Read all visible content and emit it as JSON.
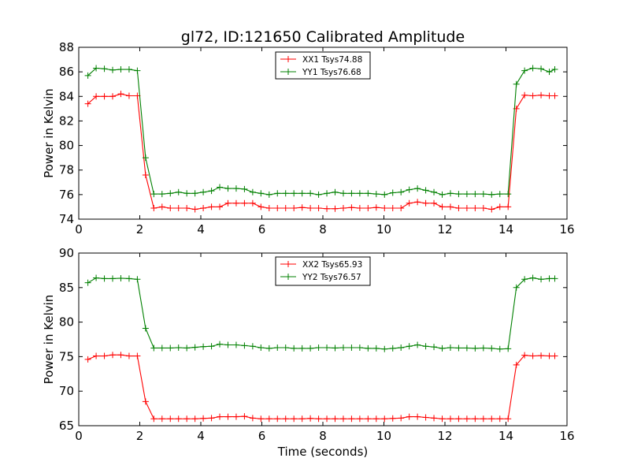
{
  "title": "gl72, ID:121650 Calibrated Amplitude",
  "chart_data": [
    {
      "type": "line",
      "ylabel": "Power in Kelvin",
      "xlabel": "",
      "xlim": [
        0,
        16
      ],
      "ylim": [
        74,
        88
      ],
      "xticks": [
        0,
        2,
        4,
        6,
        8,
        10,
        12,
        14,
        16
      ],
      "yticks": [
        74,
        76,
        78,
        80,
        82,
        84,
        86,
        88
      ],
      "legend_position": "top-center",
      "grid": false,
      "marker": "+",
      "x": [
        0.3,
        0.57,
        0.84,
        1.11,
        1.38,
        1.65,
        1.92,
        2.19,
        2.46,
        2.73,
        3.0,
        3.27,
        3.54,
        3.81,
        4.08,
        4.35,
        4.62,
        4.89,
        5.16,
        5.43,
        5.7,
        5.97,
        6.24,
        6.51,
        6.78,
        7.05,
        7.32,
        7.59,
        7.86,
        8.13,
        8.4,
        8.67,
        8.94,
        9.21,
        9.48,
        9.75,
        10.02,
        10.29,
        10.56,
        10.83,
        11.1,
        11.37,
        11.64,
        11.91,
        12.18,
        12.45,
        12.72,
        12.99,
        13.26,
        13.53,
        13.8,
        14.07,
        14.34,
        14.61,
        14.88,
        15.15,
        15.42,
        15.6
      ],
      "series": [
        {
          "name": "XX1 Tsys74.88",
          "color": "#ff0000",
          "values": [
            83.4,
            84.0,
            84.0,
            84.0,
            84.2,
            84.05,
            84.05,
            77.6,
            74.9,
            75.0,
            74.9,
            74.9,
            74.9,
            74.8,
            74.9,
            75.0,
            75.0,
            75.3,
            75.3,
            75.3,
            75.3,
            75.0,
            74.9,
            74.9,
            74.9,
            74.9,
            74.95,
            74.9,
            74.9,
            74.85,
            74.85,
            74.9,
            74.95,
            74.9,
            74.9,
            74.95,
            74.9,
            74.9,
            74.9,
            75.3,
            75.4,
            75.3,
            75.3,
            75.0,
            75.0,
            74.9,
            74.9,
            74.9,
            74.9,
            74.8,
            75.0,
            75.0,
            83.0,
            84.1,
            84.05,
            84.1,
            84.05,
            84.05
          ]
        },
        {
          "name": "YY1 Tsys76.68",
          "color": "#008000",
          "values": [
            85.7,
            86.3,
            86.25,
            86.15,
            86.2,
            86.2,
            86.1,
            79.0,
            76.05,
            76.05,
            76.1,
            76.2,
            76.1,
            76.1,
            76.2,
            76.3,
            76.6,
            76.5,
            76.5,
            76.45,
            76.2,
            76.1,
            76.0,
            76.1,
            76.1,
            76.1,
            76.1,
            76.1,
            76.0,
            76.1,
            76.2,
            76.1,
            76.1,
            76.1,
            76.1,
            76.05,
            76.0,
            76.15,
            76.2,
            76.4,
            76.5,
            76.35,
            76.2,
            76.0,
            76.1,
            76.05,
            76.05,
            76.05,
            76.05,
            76.0,
            76.05,
            76.05,
            85.0,
            86.1,
            86.3,
            86.25,
            86.0,
            86.2
          ]
        }
      ]
    },
    {
      "type": "line",
      "ylabel": "Power in Kelvin",
      "xlabel": "Time (seconds)",
      "xlim": [
        0,
        16
      ],
      "ylim": [
        65,
        90
      ],
      "xticks": [
        0,
        2,
        4,
        6,
        8,
        10,
        12,
        14,
        16
      ],
      "yticks": [
        65,
        70,
        75,
        80,
        85,
        90
      ],
      "legend_position": "top-center",
      "grid": false,
      "marker": "+",
      "x": [
        0.3,
        0.57,
        0.84,
        1.11,
        1.38,
        1.65,
        1.92,
        2.19,
        2.46,
        2.73,
        3.0,
        3.27,
        3.54,
        3.81,
        4.08,
        4.35,
        4.62,
        4.89,
        5.16,
        5.43,
        5.7,
        5.97,
        6.24,
        6.51,
        6.78,
        7.05,
        7.32,
        7.59,
        7.86,
        8.13,
        8.4,
        8.67,
        8.94,
        9.21,
        9.48,
        9.75,
        10.02,
        10.29,
        10.56,
        10.83,
        11.1,
        11.37,
        11.64,
        11.91,
        12.18,
        12.45,
        12.72,
        12.99,
        13.26,
        13.53,
        13.8,
        14.07,
        14.34,
        14.61,
        14.88,
        15.15,
        15.42,
        15.6
      ],
      "series": [
        {
          "name": "XX2 Tsys65.93",
          "color": "#ff0000",
          "values": [
            74.6,
            75.1,
            75.1,
            75.25,
            75.25,
            75.1,
            75.1,
            68.5,
            66.0,
            66.0,
            66.0,
            66.0,
            66.0,
            66.0,
            66.05,
            66.1,
            66.3,
            66.3,
            66.3,
            66.35,
            66.1,
            66.0,
            66.0,
            66.0,
            66.0,
            66.0,
            66.0,
            66.05,
            66.0,
            66.0,
            66.0,
            66.0,
            66.0,
            66.0,
            66.0,
            66.0,
            66.0,
            66.05,
            66.1,
            66.3,
            66.3,
            66.2,
            66.1,
            66.0,
            66.0,
            66.0,
            66.0,
            66.0,
            66.0,
            66.0,
            66.0,
            66.0,
            73.8,
            75.2,
            75.1,
            75.15,
            75.1,
            75.1
          ]
        },
        {
          "name": "YY2 Tsys76.57",
          "color": "#008000",
          "values": [
            85.7,
            86.4,
            86.3,
            86.3,
            86.35,
            86.3,
            86.2,
            79.1,
            76.25,
            76.25,
            76.25,
            76.3,
            76.25,
            76.35,
            76.45,
            76.5,
            76.8,
            76.7,
            76.7,
            76.6,
            76.5,
            76.3,
            76.2,
            76.3,
            76.3,
            76.2,
            76.2,
            76.2,
            76.3,
            76.3,
            76.25,
            76.3,
            76.3,
            76.3,
            76.2,
            76.2,
            76.1,
            76.2,
            76.3,
            76.5,
            76.7,
            76.5,
            76.4,
            76.2,
            76.3,
            76.25,
            76.25,
            76.2,
            76.25,
            76.2,
            76.1,
            76.15,
            85.0,
            86.2,
            86.4,
            86.2,
            86.3,
            86.3
          ]
        }
      ]
    }
  ]
}
